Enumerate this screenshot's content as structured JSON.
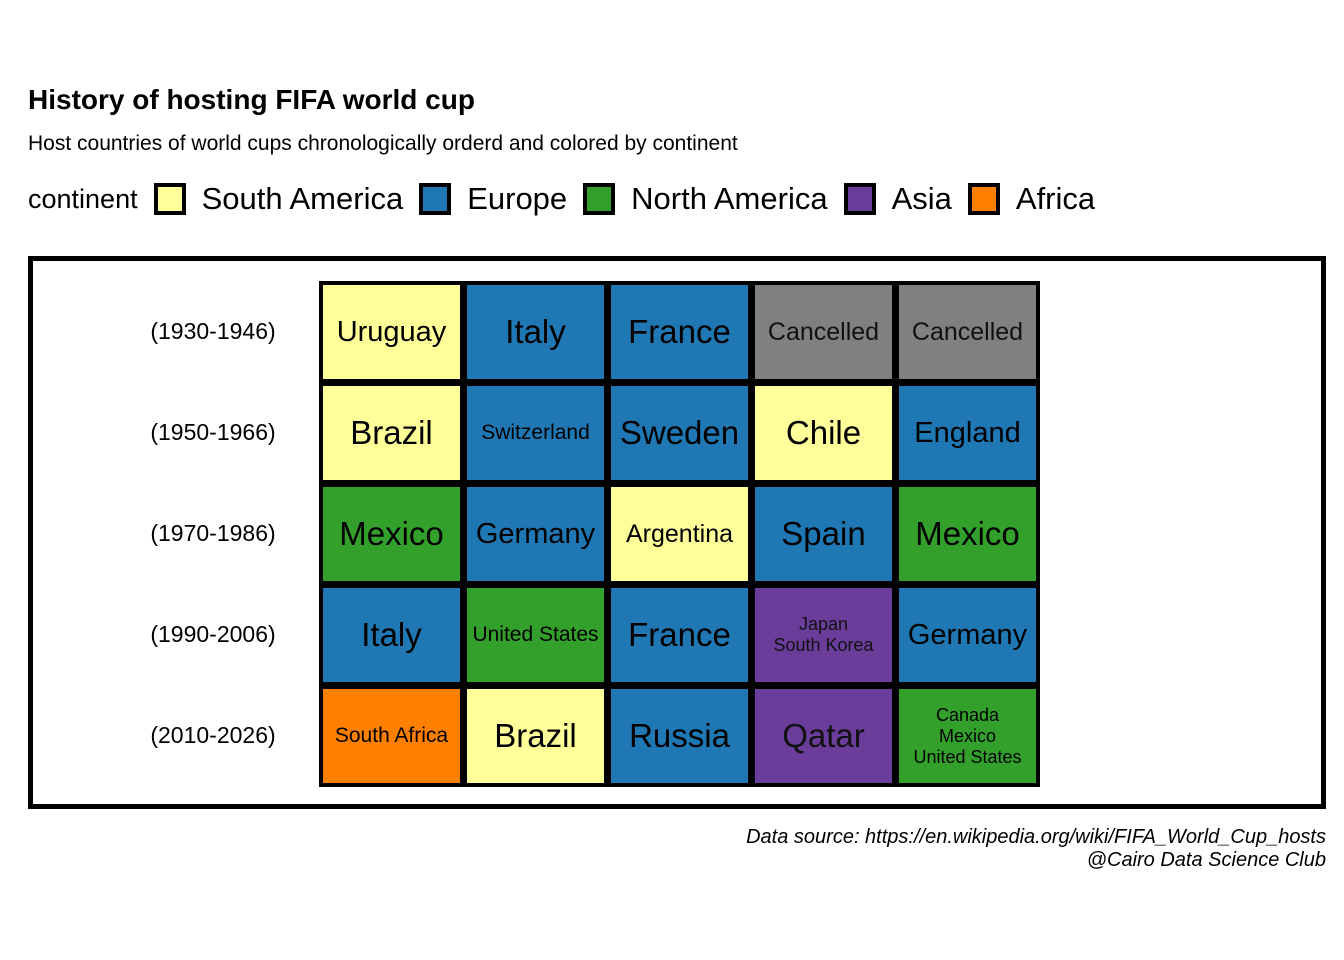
{
  "title": "History of hosting FIFA world cup",
  "subtitle": "Host countries of world cups chronologically orderd and colored by continent",
  "legend": {
    "title": "continent",
    "items": [
      {
        "label": "South America",
        "color": "#ffff99"
      },
      {
        "label": "Europe",
        "color": "#1f78b4"
      },
      {
        "label": "North America",
        "color": "#33a02c"
      },
      {
        "label": "Asia",
        "color": "#6a3d9a"
      },
      {
        "label": "Africa",
        "color": "#ff7f00"
      }
    ]
  },
  "caption": {
    "line1": "Data source: https://en.wikipedia.org/wiki/FIFA_World_Cup_hosts",
    "line2": "@Cairo Data Science Club"
  },
  "chart_data": {
    "type": "table",
    "cancelled_color": "#808080",
    "rows": [
      {
        "label": "(1930-1946)",
        "cells": [
          {
            "host": "Uruguay",
            "continent": "South America"
          },
          {
            "host": "Italy",
            "continent": "Europe"
          },
          {
            "host": "France",
            "continent": "Europe"
          },
          {
            "host": "Cancelled",
            "continent": "Cancelled"
          },
          {
            "host": "Cancelled",
            "continent": "Cancelled"
          }
        ]
      },
      {
        "label": "(1950-1966)",
        "cells": [
          {
            "host": "Brazil",
            "continent": "South America"
          },
          {
            "host": "Switzerland",
            "continent": "Europe"
          },
          {
            "host": "Sweden",
            "continent": "Europe"
          },
          {
            "host": "Chile",
            "continent": "South America"
          },
          {
            "host": "England",
            "continent": "Europe"
          }
        ]
      },
      {
        "label": "(1970-1986)",
        "cells": [
          {
            "host": "Mexico",
            "continent": "North America"
          },
          {
            "host": "Germany",
            "continent": "Europe"
          },
          {
            "host": "Argentina",
            "continent": "South America"
          },
          {
            "host": "Spain",
            "continent": "Europe"
          },
          {
            "host": "Mexico",
            "continent": "North America"
          }
        ]
      },
      {
        "label": "(1990-2006)",
        "cells": [
          {
            "host": "Italy",
            "continent": "Europe"
          },
          {
            "host": "United States",
            "continent": "North America"
          },
          {
            "host": "France",
            "continent": "Europe"
          },
          {
            "host": "Japan\nSouth Korea",
            "continent": "Asia"
          },
          {
            "host": "Germany",
            "continent": "Europe"
          }
        ]
      },
      {
        "label": "(2010-2026)",
        "cells": [
          {
            "host": "South Africa",
            "continent": "Africa"
          },
          {
            "host": "Brazil",
            "continent": "South America"
          },
          {
            "host": "Russia",
            "continent": "Europe"
          },
          {
            "host": "Qatar",
            "continent": "Asia"
          },
          {
            "host": "Canada\nMexico\nUnited States",
            "continent": "North America"
          }
        ]
      }
    ]
  }
}
